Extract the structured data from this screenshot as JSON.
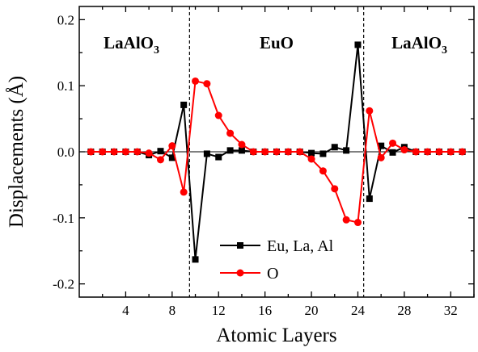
{
  "chart_data": {
    "type": "line",
    "xlabel": "Atomic Layers",
    "ylabel": "Displacements (Å)",
    "xlim": [
      0,
      34
    ],
    "ylim": [
      -0.22,
      0.22
    ],
    "x_ticks": [
      4,
      8,
      12,
      16,
      20,
      24,
      28,
      32
    ],
    "x_tick_labels": [
      "4",
      "8",
      "12",
      "16",
      "20",
      "24",
      "28",
      "32"
    ],
    "y_ticks": [
      -0.2,
      -0.1,
      0.0,
      0.1,
      0.2
    ],
    "y_tick_labels": [
      "-0.2",
      "-0.1",
      "0.0",
      "0.1",
      "0.2"
    ],
    "grid": false,
    "legend_position": "bottom-center",
    "region_labels": [
      {
        "main": "LaAlO",
        "sub": "3",
        "center_x": 4.5
      },
      {
        "main": "EuO",
        "sub": "",
        "center_x": 17
      },
      {
        "main": "LaAlO",
        "sub": "3",
        "center_x": 29.3
      }
    ],
    "dividers_x": [
      9.5,
      24.5
    ],
    "series": [
      {
        "name": "Eu, La, Al",
        "color": "#000000",
        "marker": "square",
        "x": [
          1,
          2,
          3,
          4,
          5,
          6,
          7,
          8,
          9,
          10,
          11,
          12,
          13,
          14,
          15,
          16,
          17,
          18,
          19,
          20,
          21,
          22,
          23,
          24,
          25,
          26,
          27,
          28,
          29,
          30,
          31,
          32,
          33
        ],
        "values": [
          0,
          0,
          0,
          0,
          0,
          -0.005,
          0.001,
          -0.009,
          0.071,
          -0.163,
          -0.003,
          -0.008,
          0.002,
          0.002,
          0,
          0,
          0,
          0,
          0,
          -0.002,
          -0.003,
          0.007,
          0.002,
          0.162,
          -0.071,
          0.009,
          -0.001,
          0.007,
          0,
          0,
          0,
          0,
          0
        ]
      },
      {
        "name": "O",
        "color": "#ff0000",
        "marker": "circle",
        "x": [
          1,
          2,
          3,
          4,
          5,
          6,
          7,
          8,
          9,
          10,
          11,
          12,
          13,
          14,
          15,
          16,
          17,
          18,
          19,
          20,
          21,
          22,
          23,
          24,
          25,
          26,
          27,
          28,
          29,
          30,
          31,
          32,
          33
        ],
        "values": [
          0,
          0,
          0,
          0,
          0,
          -0.002,
          -0.012,
          0.009,
          -0.061,
          0.107,
          0.103,
          0.055,
          0.028,
          0.011,
          0,
          0,
          0,
          0,
          0,
          -0.011,
          -0.029,
          -0.056,
          -0.103,
          -0.107,
          0.062,
          -0.009,
          0.013,
          0.003,
          0,
          0,
          0,
          0,
          0
        ]
      }
    ]
  }
}
